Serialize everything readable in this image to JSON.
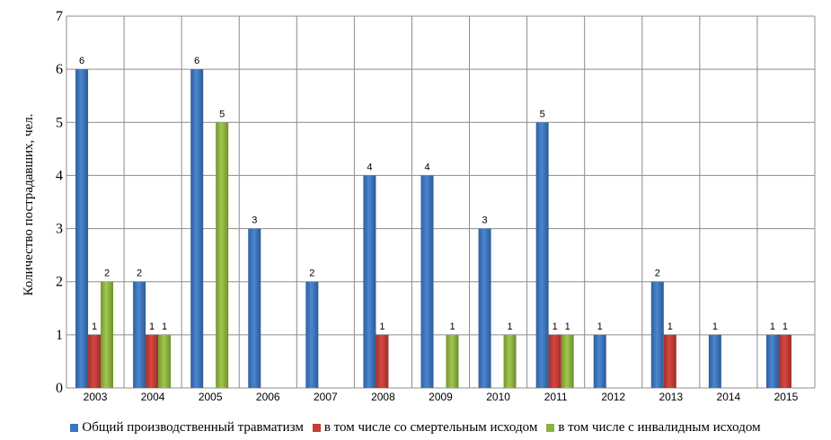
{
  "chart_data": {
    "type": "bar",
    "ylabel": "Количество пострадавших, чел.",
    "xlabel": "",
    "ylim": [
      0,
      7
    ],
    "yticks": [
      0,
      1,
      2,
      3,
      4,
      5,
      6,
      7
    ],
    "grid": true,
    "legend_position": "bottom",
    "categories": [
      "2003",
      "2004",
      "2005",
      "2006",
      "2007",
      "2008",
      "2009",
      "2010",
      "2011",
      "2012",
      "2013",
      "2014",
      "2015"
    ],
    "series": [
      {
        "name": "Общий производственный травматизм",
        "color": "#3a74c0",
        "values": [
          6,
          2,
          6,
          3,
          2,
          4,
          4,
          3,
          5,
          1,
          2,
          1,
          1
        ]
      },
      {
        "name": "в том числе со смертельным исходом",
        "color": "#c63b36",
        "values": [
          1,
          1,
          null,
          null,
          null,
          1,
          null,
          null,
          1,
          null,
          1,
          null,
          1
        ]
      },
      {
        "name": "в том числе с инвалидным исходом",
        "color": "#8cb33c",
        "values": [
          2,
          1,
          5,
          null,
          null,
          null,
          1,
          1,
          1,
          null,
          null,
          null,
          null
        ]
      }
    ]
  }
}
